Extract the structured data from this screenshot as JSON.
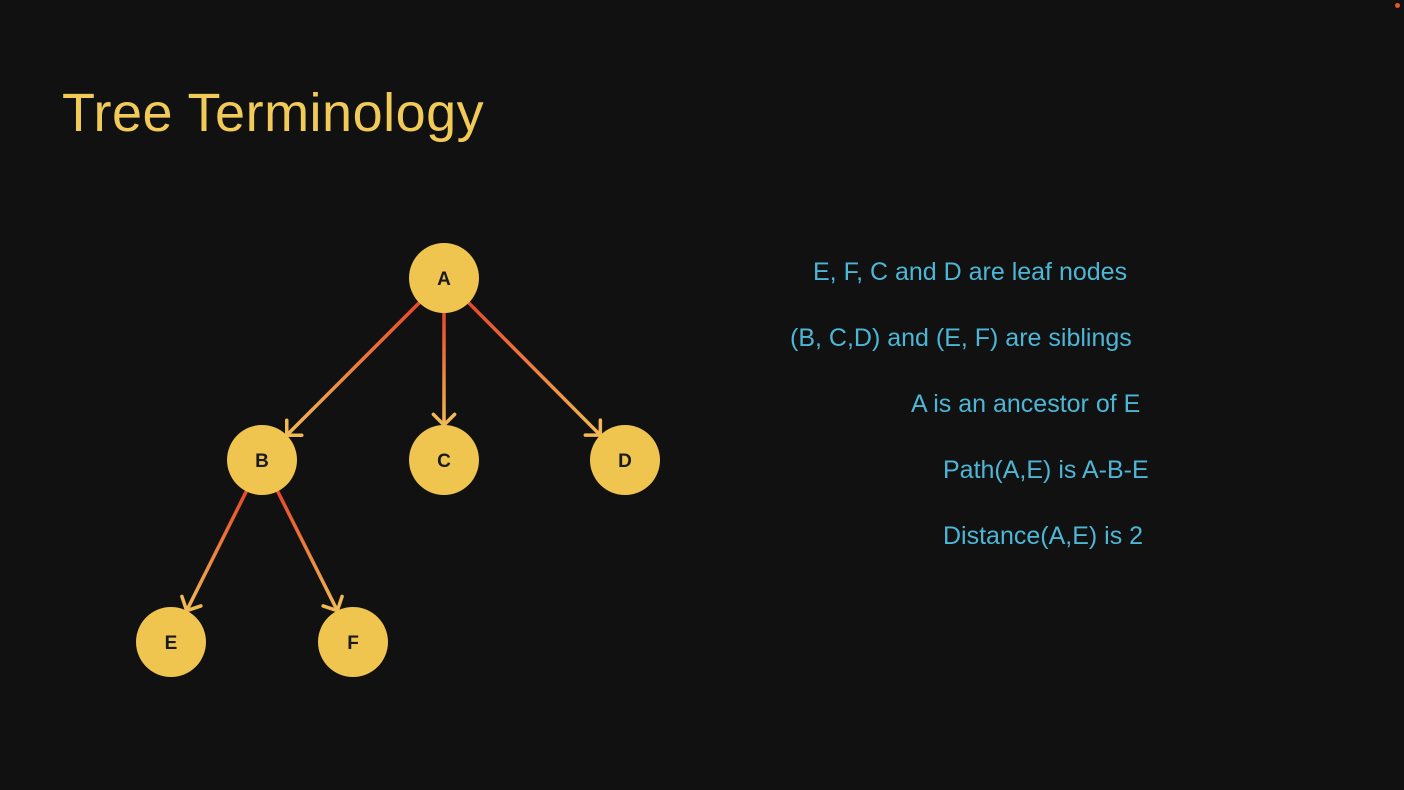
{
  "title": "Tree Terminology",
  "colors": {
    "background": "#111111",
    "title": "#f1ca58",
    "node_fill": "#efc550",
    "node_text": "#1a1a1a",
    "edge_start": "#e8482a",
    "edge_end": "#f1b954",
    "fact_text": "#4db6d6"
  },
  "diagram": {
    "nodes": [
      {
        "id": "A",
        "label": "A"
      },
      {
        "id": "B",
        "label": "B"
      },
      {
        "id": "C",
        "label": "C"
      },
      {
        "id": "D",
        "label": "D"
      },
      {
        "id": "E",
        "label": "E"
      },
      {
        "id": "F",
        "label": "F"
      }
    ],
    "edges": [
      {
        "from": "A",
        "to": "B"
      },
      {
        "from": "A",
        "to": "C"
      },
      {
        "from": "A",
        "to": "D"
      },
      {
        "from": "B",
        "to": "E"
      },
      {
        "from": "B",
        "to": "F"
      }
    ]
  },
  "facts": [
    "E, F, C and D are leaf nodes",
    "(B, C,D) and (E, F) are siblings",
    "A is an ancestor of E",
    "Path(A,E) is A-B-E",
    "Distance(A,E) is 2"
  ]
}
